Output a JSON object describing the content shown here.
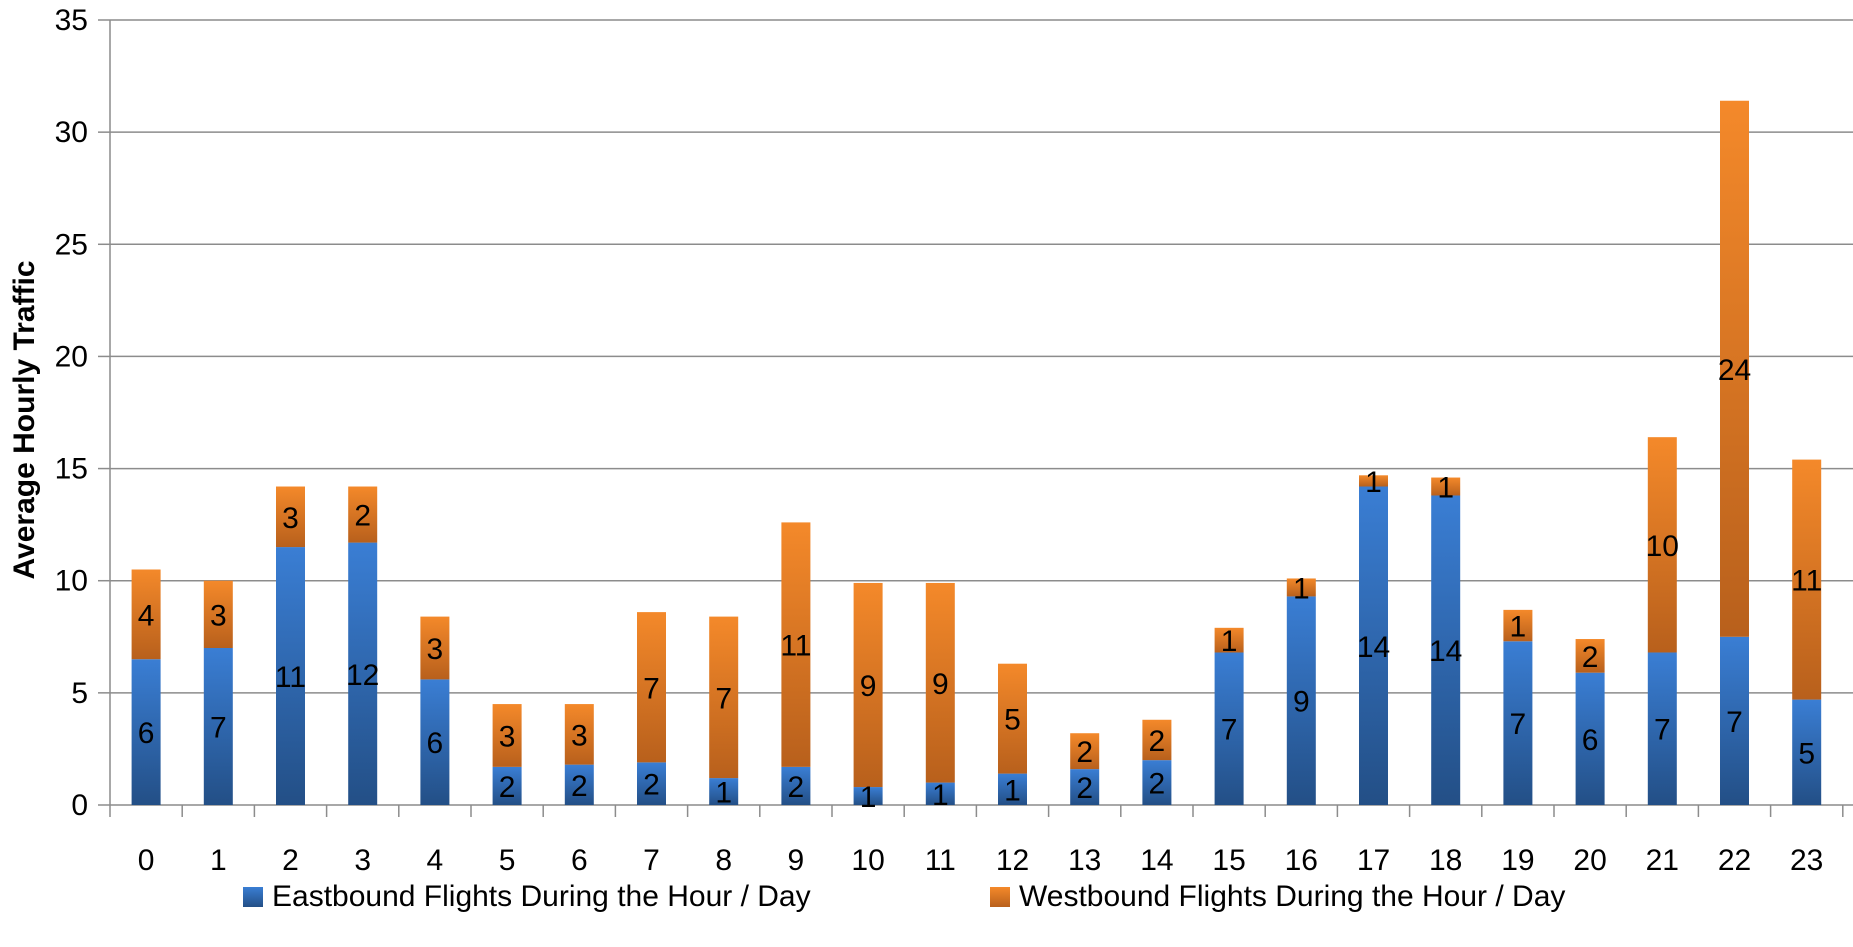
{
  "chart_data": {
    "type": "bar",
    "stacked": true,
    "categories": [
      "0",
      "1",
      "2",
      "3",
      "4",
      "5",
      "6",
      "7",
      "8",
      "9",
      "10",
      "11",
      "12",
      "13",
      "14",
      "15",
      "16",
      "17",
      "18",
      "19",
      "20",
      "21",
      "22",
      "23"
    ],
    "series": [
      {
        "name": "Eastbound Flights During the Hour / Day",
        "color": "#2e6fbd",
        "values": [
          6.5,
          7.0,
          11.5,
          11.7,
          5.6,
          1.7,
          1.8,
          1.9,
          1.2,
          1.7,
          0.8,
          1.0,
          1.4,
          1.6,
          2.0,
          6.8,
          9.3,
          14.2,
          13.8,
          7.3,
          5.9,
          6.8,
          7.5,
          4.7
        ],
        "labels": [
          "6",
          "7",
          "11",
          "12",
          "6",
          "2",
          "2",
          "2",
          "1",
          "2",
          "1",
          "1",
          "1",
          "2",
          "2",
          "7",
          "9",
          "14",
          "14",
          "7",
          "6",
          "7",
          "7",
          "5"
        ]
      },
      {
        "name": "Westbound Flights During the Hour / Day",
        "color": "#ee7f22",
        "values": [
          4.0,
          3.0,
          2.7,
          2.5,
          2.8,
          2.8,
          2.7,
          6.7,
          7.2,
          10.9,
          9.1,
          8.9,
          4.9,
          1.6,
          1.8,
          1.1,
          0.8,
          0.5,
          0.8,
          1.4,
          1.5,
          9.6,
          23.9,
          10.7
        ],
        "labels": [
          "4",
          "3",
          "3",
          "2",
          "3",
          "3",
          "3",
          "7",
          "7",
          "11",
          "9",
          "9",
          "5",
          "2",
          "2",
          "1",
          "1",
          "1",
          "1",
          "1",
          "2",
          "10",
          "24",
          "11"
        ]
      }
    ],
    "ylabel": "Average Hourly Traffic",
    "ylim": [
      0,
      35
    ],
    "yticks": [
      0,
      5,
      10,
      15,
      20,
      25,
      30,
      35
    ],
    "grid": true,
    "legend_position": "bottom"
  }
}
